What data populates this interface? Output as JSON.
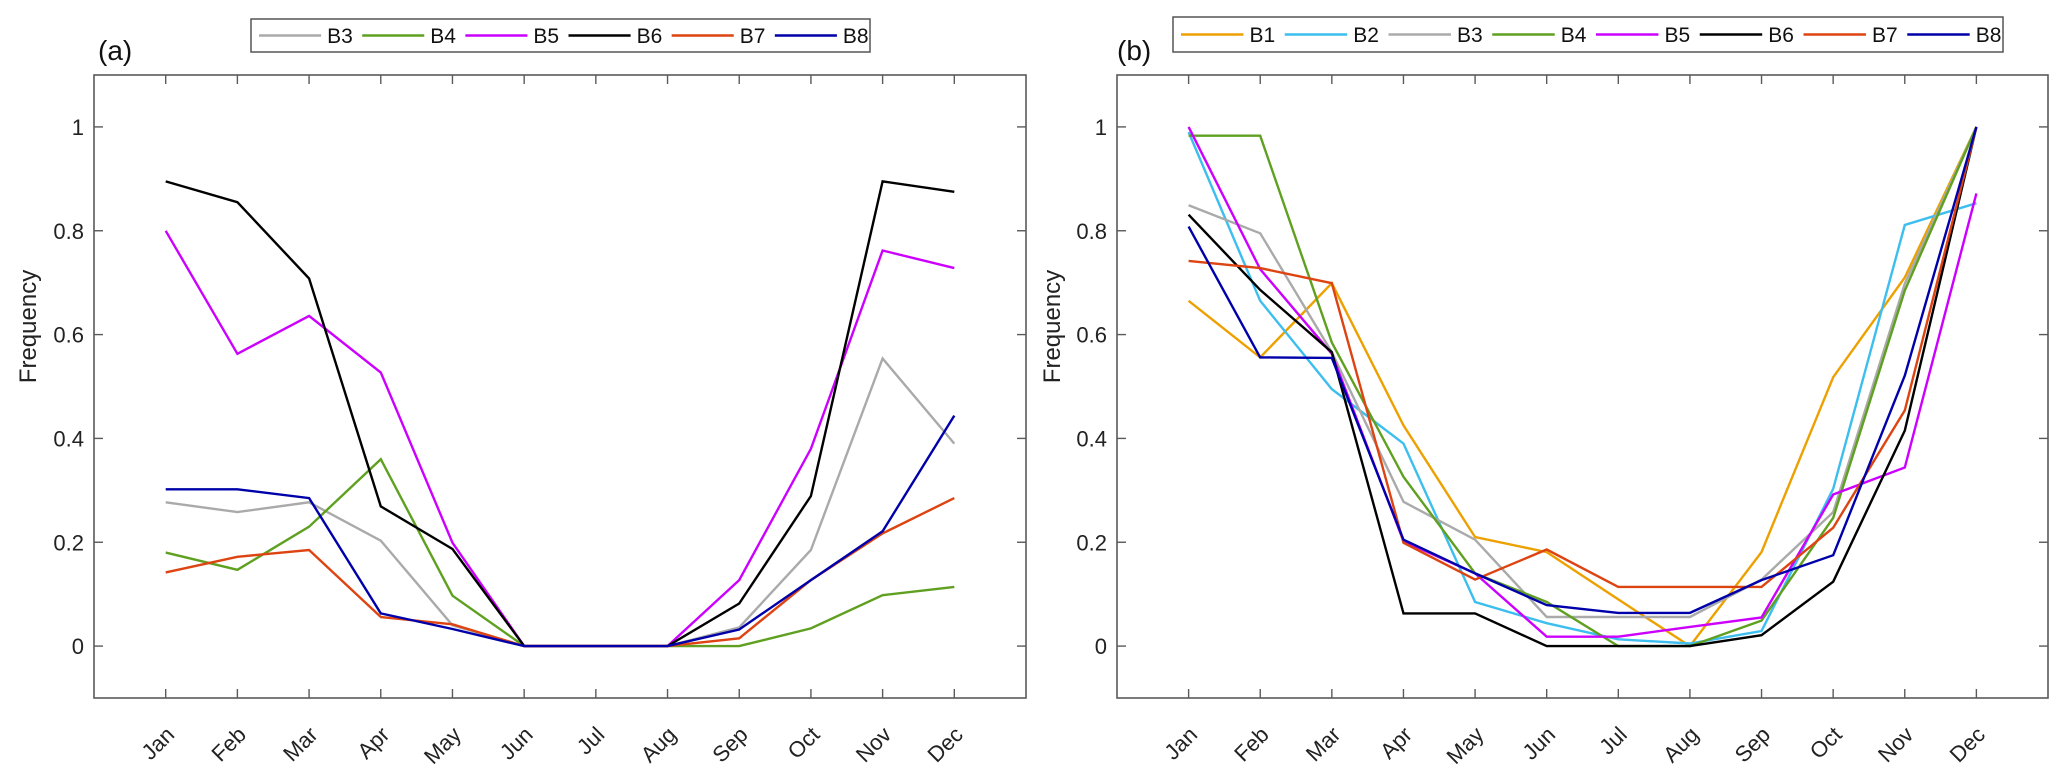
{
  "chart_data": [
    {
      "panel_label": "(a)",
      "type": "line",
      "title": "",
      "xlabel": "",
      "ylabel": "Frequency",
      "categories": [
        "Jan",
        "Feb",
        "Mar",
        "Apr",
        "May",
        "Jun",
        "Jul",
        "Aug",
        "Sep",
        "Oct",
        "Nov",
        "Dec"
      ],
      "ylim": [
        -0.1,
        1.1
      ],
      "yticks": [
        0,
        0.2,
        0.4,
        0.6,
        0.8,
        1
      ],
      "ytick_labels": [
        "0",
        "0.2",
        "0.4",
        "0.6",
        "0.8",
        "1"
      ],
      "grid": false,
      "legend_placement": "top-center-horizontal",
      "series": [
        {
          "name": "B3",
          "color": "#AAAAAA",
          "values": [
            0.277,
            0.258,
            0.277,
            0.203,
            0.04,
            0,
            0,
            0,
            0.036,
            0.185,
            0.554,
            0.39
          ]
        },
        {
          "name": "B4",
          "color": "#5FA020",
          "values": [
            0.18,
            0.147,
            0.23,
            0.36,
            0.097,
            0,
            0,
            0,
            0,
            0.034,
            0.098,
            0.114
          ]
        },
        {
          "name": "B5",
          "color": "#CC00FF",
          "values": [
            0.8,
            0.563,
            0.636,
            0.527,
            0.199,
            0,
            0,
            0,
            0.127,
            0.38,
            0.762,
            0.728
          ]
        },
        {
          "name": "B6",
          "color": "#000000",
          "values": [
            0.895,
            0.855,
            0.708,
            0.269,
            0.187,
            0,
            0,
            0,
            0.082,
            0.289,
            0.895,
            0.875
          ]
        },
        {
          "name": "B7",
          "color": "#DD4411",
          "values": [
            0.142,
            0.172,
            0.185,
            0.056,
            0.042,
            0,
            0,
            0,
            0.015,
            0.127,
            0.217,
            0.285
          ]
        },
        {
          "name": "B8",
          "color": "#0000AA",
          "values": [
            0.302,
            0.302,
            0.285,
            0.063,
            0.033,
            0,
            0,
            0,
            0.032,
            0.127,
            0.221,
            0.444
          ]
        }
      ]
    },
    {
      "panel_label": "(b)",
      "type": "line",
      "title": "",
      "xlabel": "",
      "ylabel": "Frequency",
      "categories": [
        "Jan",
        "Feb",
        "Mar",
        "Apr",
        "May",
        "Jun",
        "Jul",
        "Aug",
        "Sep",
        "Oct",
        "Nov",
        "Dec"
      ],
      "ylim": [
        -0.1,
        1.1
      ],
      "yticks": [
        0,
        0.2,
        0.4,
        0.6,
        0.8,
        1
      ],
      "ytick_labels": [
        "0",
        "0.2",
        "0.4",
        "0.6",
        "0.8",
        "1"
      ],
      "grid": false,
      "legend_placement": "top-center-horizontal",
      "series": [
        {
          "name": "B1",
          "color": "#EDA100",
          "values": [
            0.665,
            0.556,
            0.699,
            0.425,
            0.21,
            0.181,
            0.09,
            0,
            0.181,
            0.518,
            0.71,
            1.0
          ]
        },
        {
          "name": "B2",
          "color": "#3CBEEE",
          "values": [
            0.99,
            0.665,
            0.495,
            0.39,
            0.085,
            0.044,
            0.013,
            0.005,
            0.029,
            0.303,
            0.811,
            0.853
          ]
        },
        {
          "name": "B3",
          "color": "#AAAAAA",
          "values": [
            0.849,
            0.795,
            0.566,
            0.278,
            0.205,
            0.056,
            0.056,
            0.056,
            0.128,
            0.258,
            0.698,
            1.0
          ]
        },
        {
          "name": "B4",
          "color": "#5FA020",
          "values": [
            0.983,
            0.983,
            0.585,
            0.326,
            0.14,
            0.085,
            0,
            0,
            0.049,
            0.247,
            0.685,
            1.0
          ]
        },
        {
          "name": "B5",
          "color": "#CC00FF",
          "values": [
            1.0,
            0.726,
            0.563,
            0.202,
            0.14,
            0.018,
            0.018,
            0.037,
            0.055,
            0.292,
            0.344,
            0.872
          ]
        },
        {
          "name": "B6",
          "color": "#000000",
          "values": [
            0.831,
            0.686,
            0.566,
            0.063,
            0.063,
            0,
            0,
            0,
            0.021,
            0.124,
            0.415,
            1.0
          ]
        },
        {
          "name": "B7",
          "color": "#DD4411",
          "values": [
            0.742,
            0.728,
            0.699,
            0.199,
            0.128,
            0.186,
            0.114,
            0.114,
            0.114,
            0.228,
            0.454,
            1.0
          ]
        },
        {
          "name": "B8",
          "color": "#0000AA",
          "values": [
            0.808,
            0.556,
            0.555,
            0.205,
            0.14,
            0.079,
            0.064,
            0.064,
            0.127,
            0.175,
            0.521,
            1.0
          ]
        }
      ]
    }
  ]
}
